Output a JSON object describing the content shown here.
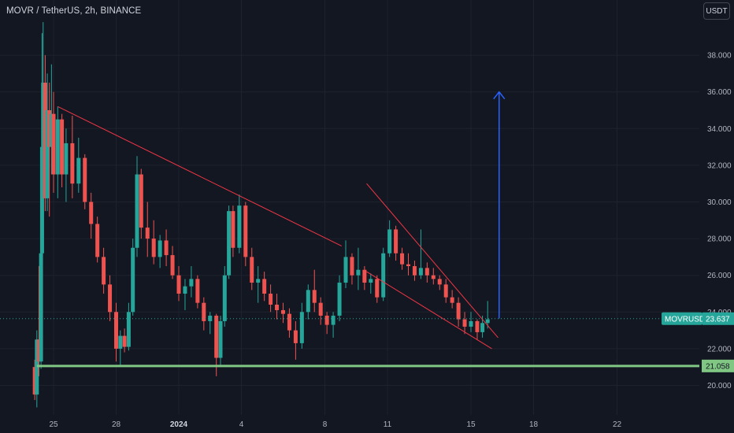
{
  "header": {
    "title": "MOVR / TetherUS, 2h, BINANCE",
    "currency_label": "USDT"
  },
  "chart_data": {
    "type": "candlestick",
    "symbol_label": "MOVRUSDT",
    "last_price": "23.637",
    "support_level": "21.058",
    "support_value": 21.058,
    "last_value": 23.637,
    "ylim": [
      18.5,
      40
    ],
    "y_ticks": [
      "20.000",
      "22.000",
      "24.000",
      "26.000",
      "28.000",
      "30.000",
      "32.000",
      "34.000",
      "36.000",
      "38.000"
    ],
    "y_tick_values": [
      20,
      22,
      24,
      26,
      28,
      30,
      32,
      34,
      36,
      38
    ],
    "x_ticks": [
      "25",
      "28",
      "2024",
      "4",
      "8",
      "11",
      "15",
      "18",
      "22"
    ],
    "x_tick_days": [
      0,
      3,
      6,
      9,
      13,
      16,
      20,
      23,
      27
    ],
    "x_first_day_label": "25",
    "colors": {
      "up": "#26a69a",
      "down": "#ef5350",
      "trendline": "#f23645",
      "support": "#81c784",
      "arrow": "#2962ff",
      "background": "#131722"
    },
    "candles": [
      [
        -0.9,
        21,
        21.4,
        19.2,
        19.5
      ],
      [
        -0.8,
        19.5,
        23,
        18.8,
        22.5
      ],
      [
        -0.7,
        22.5,
        26.5,
        20.5,
        21.3
      ],
      [
        -0.6,
        21.3,
        28,
        20.9,
        27.2
      ],
      [
        -0.55,
        27.2,
        39.2,
        26,
        33
      ],
      [
        -0.5,
        33,
        39.8,
        30,
        36.5
      ],
      [
        -0.4,
        36.5,
        38,
        29.5,
        30.2
      ],
      [
        -0.3,
        30.2,
        37,
        29.5,
        35
      ],
      [
        -0.2,
        35,
        36.5,
        29.2,
        33
      ],
      [
        -0.1,
        33,
        37.5,
        31.5,
        34.8
      ],
      [
        0,
        34.8,
        36,
        30.5,
        31.5
      ],
      [
        0.2,
        31.5,
        35.2,
        30.2,
        34.5
      ],
      [
        0.4,
        34.5,
        34.8,
        30.8,
        31.5
      ],
      [
        0.6,
        31.5,
        34,
        30,
        33.2
      ],
      [
        0.9,
        33.2,
        34.7,
        30.2,
        31
      ],
      [
        1.2,
        31,
        33.5,
        30.5,
        32.4
      ],
      [
        1.5,
        32.4,
        32.6,
        29.6,
        30
      ],
      [
        1.8,
        30,
        30.5,
        28,
        28.8
      ],
      [
        2.1,
        28.8,
        29.2,
        26.7,
        27
      ],
      [
        2.4,
        27,
        27.5,
        25,
        25.5
      ],
      [
        2.7,
        25.5,
        26,
        23.5,
        24
      ],
      [
        3.0,
        24,
        24.5,
        21.3,
        22
      ],
      [
        3.2,
        22,
        23,
        21.1,
        22.7
      ],
      [
        3.4,
        22.7,
        23.1,
        21.8,
        22.1
      ],
      [
        3.6,
        22.1,
        24.5,
        21.9,
        24
      ],
      [
        3.8,
        24,
        28,
        23.8,
        27.5
      ],
      [
        4.0,
        27.5,
        32.5,
        27,
        31.5
      ],
      [
        4.2,
        31.5,
        31.8,
        28,
        28.6
      ],
      [
        4.5,
        28.6,
        30,
        27,
        28
      ],
      [
        4.8,
        28,
        29,
        26.6,
        27
      ],
      [
        5.1,
        27,
        28.2,
        26.4,
        27.9
      ],
      [
        5.4,
        27.9,
        28.5,
        26.5,
        27.1
      ],
      [
        5.7,
        27.1,
        27.6,
        25.8,
        26
      ],
      [
        6.0,
        26,
        26.5,
        24.6,
        25
      ],
      [
        6.3,
        25,
        25.8,
        24.1,
        25.4
      ],
      [
        6.6,
        25.4,
        26.5,
        24.8,
        25.8
      ],
      [
        6.9,
        25.8,
        26,
        24.2,
        24.5
      ],
      [
        7.2,
        24.5,
        24.8,
        23,
        23.5
      ],
      [
        7.5,
        23.5,
        24,
        22.8,
        23.8
      ],
      [
        7.8,
        23.8,
        23.9,
        20.5,
        21.5
      ],
      [
        8.0,
        21.5,
        23.8,
        21,
        23.5
      ],
      [
        8.2,
        23.5,
        26.5,
        23.2,
        26
      ],
      [
        8.4,
        26,
        29.8,
        25.8,
        29.5
      ],
      [
        8.6,
        29.5,
        29.8,
        27,
        27.5
      ],
      [
        8.9,
        27.5,
        30.4,
        27.2,
        29.8
      ],
      [
        9.2,
        29.8,
        30,
        26.5,
        27
      ],
      [
        9.5,
        27,
        27.5,
        25.2,
        25.6
      ],
      [
        9.8,
        25.6,
        26.5,
        24.5,
        25.8
      ],
      [
        10.1,
        25.8,
        26.2,
        24.6,
        25
      ],
      [
        10.4,
        25,
        25.5,
        24,
        24.4
      ],
      [
        10.7,
        24.4,
        25,
        23.6,
        24.1
      ],
      [
        11.0,
        24.1,
        24.5,
        23.4,
        23.9
      ],
      [
        11.3,
        23.9,
        24.2,
        22.6,
        23
      ],
      [
        11.6,
        23,
        23.5,
        21.4,
        22.3
      ],
      [
        11.9,
        22.3,
        24.5,
        22,
        24
      ],
      [
        12.2,
        24,
        25.5,
        23.6,
        25.2
      ],
      [
        12.5,
        25.2,
        26.3,
        24,
        24.5
      ],
      [
        12.8,
        24.5,
        24.8,
        23.3,
        23.8
      ],
      [
        13.1,
        23.8,
        24,
        22.8,
        23.3
      ],
      [
        13.4,
        23.3,
        24,
        22.6,
        23.8
      ],
      [
        13.7,
        23.8,
        26,
        23.5,
        25.6
      ],
      [
        14.0,
        25.6,
        27.9,
        25.3,
        27
      ],
      [
        14.3,
        27,
        27.2,
        25.5,
        26
      ],
      [
        14.6,
        26,
        27.5,
        25.2,
        26.3
      ],
      [
        14.9,
        26.3,
        26.5,
        25.2,
        25.6
      ],
      [
        15.2,
        25.6,
        26.1,
        25,
        25.8
      ],
      [
        15.5,
        25.8,
        26,
        24.5,
        24.8
      ],
      [
        15.8,
        24.8,
        27.5,
        24.6,
        27.2
      ],
      [
        16.1,
        27.2,
        29,
        27,
        28.5
      ],
      [
        16.4,
        28.5,
        28.7,
        26.8,
        27.2
      ],
      [
        16.7,
        27.2,
        27.5,
        26.3,
        26.6
      ],
      [
        17.0,
        26.6,
        27.2,
        26,
        26.5
      ],
      [
        17.3,
        26.5,
        26.8,
        25.7,
        26
      ],
      [
        17.6,
        26,
        28.5,
        25.8,
        26.4
      ],
      [
        17.9,
        26.4,
        26.7,
        25.6,
        26
      ],
      [
        18.2,
        26,
        26.4,
        25.5,
        25.8
      ],
      [
        18.5,
        25.8,
        26,
        25.2,
        25.5
      ],
      [
        18.8,
        25.5,
        25.8,
        24.5,
        24.8
      ],
      [
        19.1,
        24.8,
        25.2,
        24.2,
        24.5
      ],
      [
        19.4,
        24.5,
        24.8,
        23.2,
        23.6
      ],
      [
        19.7,
        23.6,
        24,
        22.8,
        23.2
      ],
      [
        20.0,
        23.2,
        24,
        22.9,
        23.5
      ],
      [
        20.3,
        23.5,
        23.6,
        22.5,
        22.9
      ],
      [
        20.55,
        22.9,
        23.8,
        22.6,
        23.4
      ],
      [
        20.8,
        23.4,
        24.6,
        23.1,
        23.6
      ]
    ],
    "trendlines": [
      {
        "from": [
          0.2,
          35.2
        ],
        "to": [
          13.8,
          27.6
        ]
      },
      {
        "from": [
          15.0,
          31.0
        ],
        "to": [
          21.3,
          22.6
        ]
      },
      {
        "from": [
          15.0,
          26.2
        ],
        "to": [
          21.0,
          22.0
        ]
      }
    ],
    "support_from_day": -0.8,
    "arrow": {
      "day": 21.35,
      "from": 23.65,
      "to": 36.0
    }
  }
}
